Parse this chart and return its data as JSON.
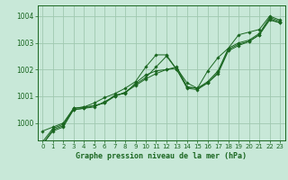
{
  "title": "Graphe pression niveau de la mer (hPa)",
  "bg_color": "#c8e8d8",
  "grid_color": "#a0c8b0",
  "line_color": "#1a6620",
  "marker_color": "#1a6620",
  "xlim": [
    -0.5,
    23.5
  ],
  "ylim": [
    999.35,
    1004.4
  ],
  "yticks": [
    1000,
    1001,
    1002,
    1003,
    1004
  ],
  "xticks": [
    0,
    1,
    2,
    3,
    4,
    5,
    6,
    7,
    8,
    9,
    10,
    11,
    12,
    13,
    14,
    15,
    16,
    17,
    18,
    19,
    20,
    21,
    22,
    23
  ],
  "series": [
    [
      999.3,
      999.8,
      999.95,
      1000.55,
      1000.6,
      1000.65,
      1000.75,
      1001.05,
      1001.1,
      1001.5,
      1001.8,
      1001.95,
      1002.0,
      1002.1,
      1001.35,
      1001.3,
      1001.55,
      1001.95,
      1002.8,
      1003.0,
      1003.1,
      1003.35,
      1003.95,
      1003.8
    ],
    [
      999.2,
      999.75,
      999.9,
      1000.5,
      1000.55,
      1000.6,
      1000.8,
      1001.0,
      1001.15,
      1001.4,
      1001.65,
      1001.85,
      1002.0,
      1002.05,
      1001.5,
      1001.3,
      1001.5,
      1001.9,
      1002.75,
      1002.95,
      1003.05,
      1003.3,
      1003.9,
      1003.75
    ],
    [
      999.7,
      999.85,
      1000.0,
      1000.55,
      1000.6,
      1000.75,
      1000.95,
      1001.1,
      1001.3,
      1001.55,
      1002.1,
      1002.55,
      1002.55,
      1002.0,
      1001.35,
      1001.3,
      1001.95,
      1002.45,
      1002.8,
      1003.3,
      1003.4,
      1003.5,
      1004.0,
      1003.85
    ],
    [
      999.2,
      999.7,
      999.85,
      1000.5,
      1000.55,
      1000.65,
      1000.75,
      1001.0,
      1001.15,
      1001.45,
      1001.7,
      1002.1,
      1002.5,
      1002.0,
      1001.3,
      1001.25,
      1001.5,
      1001.85,
      1002.7,
      1002.9,
      1003.05,
      1003.3,
      1003.85,
      1003.75
    ]
  ]
}
